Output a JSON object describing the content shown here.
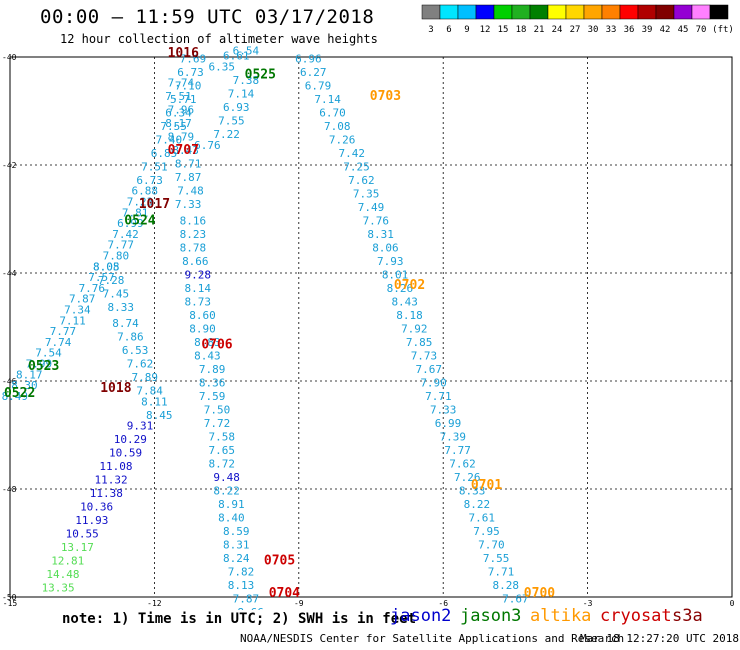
{
  "header": {
    "title": "00:00 – 11:59 UTC 03/17/2018",
    "subtitle": "12 hour collection of altimeter wave heights"
  },
  "colorbar": {
    "labels": [
      "3",
      "6",
      "9",
      "12",
      "15",
      "18",
      "21",
      "24",
      "27",
      "30",
      "33",
      "36",
      "39",
      "42",
      "45",
      "70",
      "(ft)"
    ],
    "colors": [
      "#808080",
      "#00e5ff",
      "#00bfff",
      "#0000ff",
      "#00d000",
      "#20b020",
      "#008000",
      "#ffff00",
      "#ffd700",
      "#ffa500",
      "#ff8000",
      "#ff0000",
      "#b00000",
      "#800000",
      "#9400d3",
      "#ff80ff",
      "#000000"
    ]
  },
  "footer": {
    "note": "note: 1) Time is in UTC; 2) SWH is in feet",
    "satellites": [
      {
        "name": "jason2",
        "color": "#0000cc"
      },
      {
        "name": "jason3",
        "color": "#007700"
      },
      {
        "name": "altika",
        "color": "#ff9900"
      },
      {
        "name": "cryosat",
        "color": "#cc0000"
      },
      {
        "name": "s3a",
        "color": "#880000"
      }
    ],
    "credit": "NOAA/NESDIS Center for Satellite Applications and Research",
    "timestamp": "Mar 18 12:27:20 UTC 2018"
  },
  "chart_data": {
    "type": "scatter",
    "xlim": [
      -15,
      0
    ],
    "ylim": [
      -50,
      -40
    ],
    "x_ticks": [
      -15,
      -12,
      -9,
      -6,
      -3,
      0
    ],
    "x_tick_labels": [
      "-15",
      "-12",
      "-9",
      "-6",
      "-3",
      "0"
    ],
    "y_ticks": [
      -40,
      -42,
      -44,
      -46,
      -48,
      -50
    ],
    "y_tick_labels": [
      "-40",
      "-42",
      "-44",
      "-46",
      "-48",
      "-50"
    ],
    "grid": true,
    "time_labels": [
      {
        "text": "1016",
        "x": -11.4,
        "y": -40.0,
        "color": "#800000"
      },
      {
        "text": "0525",
        "x": -9.8,
        "y": -40.4,
        "color": "#007700"
      },
      {
        "text": "0703",
        "x": -7.2,
        "y": -40.8,
        "color": "#ff9900"
      },
      {
        "text": "0707",
        "x": -11.4,
        "y": -41.8,
        "color": "#cc0000"
      },
      {
        "text": "1017",
        "x": -12.0,
        "y": -42.8,
        "color": "#800000"
      },
      {
        "text": "0524",
        "x": -12.3,
        "y": -43.1,
        "color": "#007700"
      },
      {
        "text": "0702",
        "x": -6.7,
        "y": -44.3,
        "color": "#ff9900"
      },
      {
        "text": "0706",
        "x": -10.7,
        "y": -45.4,
        "color": "#cc0000"
      },
      {
        "text": "0523",
        "x": -14.3,
        "y": -45.8,
        "color": "#007700"
      },
      {
        "text": "0522",
        "x": -14.8,
        "y": -46.3,
        "color": "#007700"
      },
      {
        "text": "1018",
        "x": -12.8,
        "y": -46.2,
        "color": "#800000"
      },
      {
        "text": "0701",
        "x": -5.1,
        "y": -48.0,
        "color": "#ff9900"
      },
      {
        "text": "0705",
        "x": -9.4,
        "y": -49.4,
        "color": "#cc0000"
      },
      {
        "text": "0704",
        "x": -9.3,
        "y": -50.0,
        "color": "#cc0000"
      },
      {
        "text": "0700",
        "x": -4.0,
        "y": -50.0,
        "color": "#ff9900"
      }
    ],
    "tracks": [
      {
        "name": "track_west",
        "points": [
          {
            "x": -14.9,
            "y": -46.35,
            "v": "8.49"
          },
          {
            "x": -14.7,
            "y": -46.15,
            "v": "8.30"
          },
          {
            "x": -14.6,
            "y": -45.95,
            "v": "8.17"
          },
          {
            "x": -14.4,
            "y": -45.75,
            "v": "7.99"
          },
          {
            "x": -14.2,
            "y": -45.55,
            "v": "7.54"
          },
          {
            "x": -14.0,
            "y": -45.35,
            "v": "7.74"
          },
          {
            "x": -13.9,
            "y": -45.15,
            "v": "7.77"
          },
          {
            "x": -13.7,
            "y": -44.95,
            "v": "7.11"
          },
          {
            "x": -13.6,
            "y": -44.75,
            "v": "7.34"
          },
          {
            "x": -13.5,
            "y": -44.55,
            "v": "7.87"
          },
          {
            "x": -13.3,
            "y": -44.35,
            "v": "7.76"
          },
          {
            "x": -13.1,
            "y": -44.15,
            "v": "7.57"
          },
          {
            "x": -13.0,
            "y": -43.95,
            "v": "8.08"
          },
          {
            "x": -12.8,
            "y": -43.75,
            "v": "7.80"
          },
          {
            "x": -12.7,
            "y": -43.55,
            "v": "7.77"
          },
          {
            "x": -12.6,
            "y": -43.35,
            "v": "7.42"
          },
          {
            "x": -12.5,
            "y": -43.15,
            "v": "6.99"
          },
          {
            "x": -12.4,
            "y": -42.95,
            "v": "7.81"
          },
          {
            "x": -12.3,
            "y": -42.75,
            "v": "7.23"
          },
          {
            "x": -12.2,
            "y": -42.55,
            "v": "6.88"
          },
          {
            "x": -12.1,
            "y": -42.35,
            "v": "6.73"
          },
          {
            "x": -12.0,
            "y": -42.1,
            "v": "7.51"
          },
          {
            "x": -11.8,
            "y": -41.85,
            "v": "6.85"
          },
          {
            "x": -11.7,
            "y": -41.6,
            "v": "7.40"
          },
          {
            "x": -11.6,
            "y": -41.35,
            "v": "7.55"
          },
          {
            "x": -11.5,
            "y": -41.1,
            "v": "6.34"
          },
          {
            "x": -11.4,
            "y": -40.85,
            "v": "5.71"
          },
          {
            "x": -11.3,
            "y": -40.6,
            "v": "7.10"
          },
          {
            "x": -11.25,
            "y": -40.35,
            "v": "6.73"
          },
          {
            "x": -11.2,
            "y": -40.1,
            "v": "7.69"
          }
        ]
      },
      {
        "name": "track_cyan_mid",
        "points": [
          {
            "x": -11.9,
            "y": -46.7,
            "v": "8.45"
          },
          {
            "x": -12.0,
            "y": -46.45,
            "v": "8.11"
          },
          {
            "x": -12.1,
            "y": -46.25,
            "v": "7.84"
          },
          {
            "x": -12.2,
            "y": -46.0,
            "v": "7.89"
          },
          {
            "x": -12.3,
            "y": -45.75,
            "v": "7.62"
          },
          {
            "x": -12.4,
            "y": -45.5,
            "v": "6.53"
          },
          {
            "x": -12.5,
            "y": -45.25,
            "v": "7.86"
          },
          {
            "x": -12.6,
            "y": -45.0,
            "v": "8.74"
          },
          {
            "x": -12.7,
            "y": -44.7,
            "v": "8.33"
          },
          {
            "x": -12.8,
            "y": -44.45,
            "v": "7.45"
          },
          {
            "x": -12.9,
            "y": -44.2,
            "v": "7.28"
          },
          {
            "x": -13.0,
            "y": -43.95,
            "v": "8.05"
          }
        ]
      },
      {
        "name": "track_blue",
        "points": [
          {
            "x": -12.3,
            "y": -46.9,
            "v": "9.31"
          },
          {
            "x": -12.5,
            "y": -47.15,
            "v": "10.29"
          },
          {
            "x": -12.6,
            "y": -47.4,
            "v": "10.59"
          },
          {
            "x": -12.8,
            "y": -47.65,
            "v": "11.08"
          },
          {
            "x": -12.9,
            "y": -47.9,
            "v": "11.32"
          },
          {
            "x": -13.0,
            "y": -48.15,
            "v": "11.38"
          },
          {
            "x": -13.2,
            "y": -48.4,
            "v": "10.36"
          },
          {
            "x": -13.3,
            "y": -48.65,
            "v": "11.93"
          },
          {
            "x": -13.5,
            "y": -48.9,
            "v": "10.55"
          },
          {
            "x": -13.6,
            "y": -49.15,
            "v": "13.17"
          },
          {
            "x": -13.8,
            "y": -49.4,
            "v": "12.81"
          },
          {
            "x": -13.9,
            "y": -49.65,
            "v": "14.48"
          },
          {
            "x": -14.0,
            "y": -49.9,
            "v": "13.35"
          }
        ]
      },
      {
        "name": "track_center",
        "points": [
          {
            "x": -11.45,
            "y": -40.55,
            "v": "7.74"
          },
          {
            "x": -11.5,
            "y": -40.8,
            "v": "7.51"
          },
          {
            "x": -11.45,
            "y": -41.05,
            "v": "7.96"
          },
          {
            "x": -11.5,
            "y": -41.3,
            "v": "8.17"
          },
          {
            "x": -11.45,
            "y": -41.55,
            "v": "8.79"
          },
          {
            "x": -11.35,
            "y": -41.8,
            "v": "8.43"
          },
          {
            "x": -11.3,
            "y": -42.05,
            "v": "8.71"
          },
          {
            "x": -11.3,
            "y": -42.3,
            "v": "7.87"
          },
          {
            "x": -11.25,
            "y": -42.55,
            "v": "7.48"
          },
          {
            "x": -11.3,
            "y": -42.8,
            "v": "7.33"
          },
          {
            "x": -11.2,
            "y": -43.1,
            "v": "8.16"
          },
          {
            "x": -11.2,
            "y": -43.35,
            "v": "8.23"
          },
          {
            "x": -11.2,
            "y": -43.6,
            "v": "8.78"
          },
          {
            "x": -11.15,
            "y": -43.85,
            "v": "8.66"
          },
          {
            "x": -11.1,
            "y": -44.1,
            "v": "9.28"
          },
          {
            "x": -11.1,
            "y": -44.35,
            "v": "8.14"
          },
          {
            "x": -11.1,
            "y": -44.6,
            "v": "8.73"
          },
          {
            "x": -11.0,
            "y": -44.85,
            "v": "8.60"
          },
          {
            "x": -11.0,
            "y": -45.1,
            "v": "8.90"
          },
          {
            "x": -10.9,
            "y": -45.35,
            "v": "8.83"
          },
          {
            "x": -10.9,
            "y": -45.6,
            "v": "8.43"
          },
          {
            "x": -10.8,
            "y": -45.85,
            "v": "7.89"
          },
          {
            "x": -10.8,
            "y": -46.1,
            "v": "8.36"
          },
          {
            "x": -10.8,
            "y": -46.35,
            "v": "7.59"
          },
          {
            "x": -10.7,
            "y": -46.6,
            "v": "7.50"
          },
          {
            "x": -10.7,
            "y": -46.85,
            "v": "7.72"
          },
          {
            "x": -10.6,
            "y": -47.1,
            "v": "7.58"
          },
          {
            "x": -10.6,
            "y": -47.35,
            "v": "7.65"
          },
          {
            "x": -10.6,
            "y": -47.6,
            "v": "8.72"
          },
          {
            "x": -10.5,
            "y": -47.85,
            "v": "9.48"
          },
          {
            "x": -10.5,
            "y": -48.1,
            "v": "8.22"
          },
          {
            "x": -10.4,
            "y": -48.35,
            "v": "8.91"
          },
          {
            "x": -10.4,
            "y": -48.6,
            "v": "8.40"
          },
          {
            "x": -10.3,
            "y": -48.85,
            "v": "8.59"
          },
          {
            "x": -10.3,
            "y": -49.1,
            "v": "8.31"
          },
          {
            "x": -10.3,
            "y": -49.35,
            "v": "8.24"
          },
          {
            "x": -10.2,
            "y": -49.6,
            "v": "7.82"
          },
          {
            "x": -10.2,
            "y": -49.85,
            "v": "8.13"
          },
          {
            "x": -10.1,
            "y": -50.1,
            "v": "7.87"
          },
          {
            "x": -10.0,
            "y": -50.35,
            "v": "8.66"
          }
        ]
      },
      {
        "name": "track_top",
        "points": [
          {
            "x": -10.1,
            "y": -40.5,
            "v": "7.38"
          },
          {
            "x": -10.2,
            "y": -40.75,
            "v": "7.14"
          },
          {
            "x": -10.3,
            "y": -41.0,
            "v": "6.93"
          },
          {
            "x": -10.4,
            "y": -41.25,
            "v": "7.55"
          },
          {
            "x": -10.5,
            "y": -41.5,
            "v": "7.22"
          },
          {
            "x": -10.9,
            "y": -41.7,
            "v": "6.76"
          },
          {
            "x": -10.6,
            "y": -40.25,
            "v": "6.35"
          },
          {
            "x": -10.3,
            "y": -40.05,
            "v": "6.61"
          },
          {
            "x": -10.1,
            "y": -39.95,
            "v": "6.54"
          }
        ]
      },
      {
        "name": "track_east",
        "points": [
          {
            "x": -8.8,
            "y": -40.1,
            "v": "6.96"
          },
          {
            "x": -8.7,
            "y": -40.35,
            "v": "6.27"
          },
          {
            "x": -8.6,
            "y": -40.6,
            "v": "6.79"
          },
          {
            "x": -8.4,
            "y": -40.85,
            "v": "7.14"
          },
          {
            "x": -8.3,
            "y": -41.1,
            "v": "6.70"
          },
          {
            "x": -8.2,
            "y": -41.35,
            "v": "7.08"
          },
          {
            "x": -8.1,
            "y": -41.6,
            "v": "7.26"
          },
          {
            "x": -7.9,
            "y": -41.85,
            "v": "7.42"
          },
          {
            "x": -7.8,
            "y": -42.1,
            "v": "7.25"
          },
          {
            "x": -7.7,
            "y": -42.35,
            "v": "7.62"
          },
          {
            "x": -7.6,
            "y": -42.6,
            "v": "7.35"
          },
          {
            "x": -7.5,
            "y": -42.85,
            "v": "7.49"
          },
          {
            "x": -7.4,
            "y": -43.1,
            "v": "7.76"
          },
          {
            "x": -7.3,
            "y": -43.35,
            "v": "8.31"
          },
          {
            "x": -7.2,
            "y": -43.6,
            "v": "8.06"
          },
          {
            "x": -7.1,
            "y": -43.85,
            "v": "7.93"
          },
          {
            "x": -7.0,
            "y": -44.1,
            "v": "8.01"
          },
          {
            "x": -6.9,
            "y": -44.35,
            "v": "8.26"
          },
          {
            "x": -6.8,
            "y": -44.6,
            "v": "8.43"
          },
          {
            "x": -6.7,
            "y": -44.85,
            "v": "8.18"
          },
          {
            "x": -6.6,
            "y": -45.1,
            "v": "7.92"
          },
          {
            "x": -6.5,
            "y": -45.35,
            "v": "7.85"
          },
          {
            "x": -6.4,
            "y": -45.6,
            "v": "7.73"
          },
          {
            "x": -6.3,
            "y": -45.85,
            "v": "7.67"
          },
          {
            "x": -6.2,
            "y": -46.1,
            "v": "7.90"
          },
          {
            "x": -6.1,
            "y": -46.35,
            "v": "7.71"
          },
          {
            "x": -6.0,
            "y": -46.6,
            "v": "7.33"
          },
          {
            "x": -5.9,
            "y": -46.85,
            "v": "6.99"
          },
          {
            "x": -5.8,
            "y": -47.1,
            "v": "7.39"
          },
          {
            "x": -5.7,
            "y": -47.35,
            "v": "7.77"
          },
          {
            "x": -5.6,
            "y": -47.6,
            "v": "7.62"
          },
          {
            "x": -5.5,
            "y": -47.85,
            "v": "7.26"
          },
          {
            "x": -5.4,
            "y": -48.1,
            "v": "8.33"
          },
          {
            "x": -5.3,
            "y": -48.35,
            "v": "8.22"
          },
          {
            "x": -5.2,
            "y": -48.6,
            "v": "7.61"
          },
          {
            "x": -5.1,
            "y": -48.85,
            "v": "7.95"
          },
          {
            "x": -5.0,
            "y": -49.1,
            "v": "7.70"
          },
          {
            "x": -4.9,
            "y": -49.35,
            "v": "7.55"
          },
          {
            "x": -4.8,
            "y": -49.6,
            "v": "7.71"
          },
          {
            "x": -4.7,
            "y": -49.85,
            "v": "8.28"
          },
          {
            "x": -4.5,
            "y": -50.1,
            "v": "7.67"
          }
        ]
      }
    ]
  }
}
